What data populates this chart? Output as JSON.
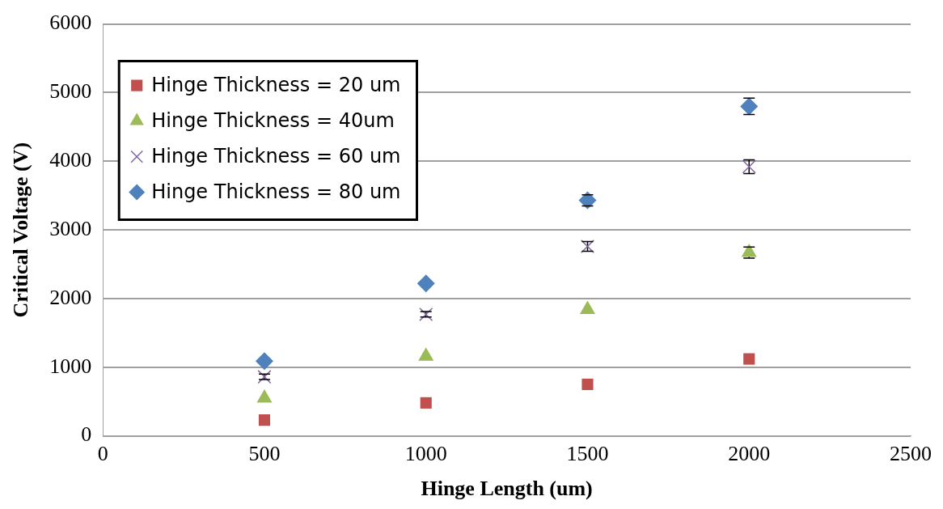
{
  "chart_data": {
    "type": "scatter",
    "xlabel": "Hinge Length (um)",
    "ylabel": "Critical Voltage (V)",
    "x": [
      500,
      1000,
      1500,
      2000
    ],
    "series": [
      {
        "name": "Hinge Thickness = 20 um",
        "color": "#c0504d",
        "marker": "square",
        "values": [
          230,
          480,
          750,
          1120
        ]
      },
      {
        "name": "Hinge Thickness = 40um",
        "color": "#9bbb59",
        "marker": "triangle",
        "values": [
          550,
          1160,
          1840,
          2670
        ],
        "errors": [
          null,
          null,
          null,
          80
        ]
      },
      {
        "name": "Hinge Thickness = 60 um",
        "color": "#8064a2",
        "marker": "cross",
        "values": [
          860,
          1770,
          2760,
          3920
        ],
        "errors": [
          40,
          40,
          70,
          100
        ]
      },
      {
        "name": "Hinge Thickness = 80 um",
        "color": "#4f81bd",
        "marker": "diamond",
        "values": [
          1090,
          2220,
          3430,
          4800
        ],
        "errors": [
          null,
          null,
          80,
          120
        ]
      }
    ],
    "xlim": [
      0,
      2500
    ],
    "xticks": [
      0,
      500,
      1000,
      1500,
      2000,
      2500
    ],
    "ylim": [
      0,
      6000
    ],
    "yticks": [
      0,
      1000,
      2000,
      3000,
      4000,
      5000,
      6000
    ],
    "grid": "y",
    "legend": "top left"
  }
}
